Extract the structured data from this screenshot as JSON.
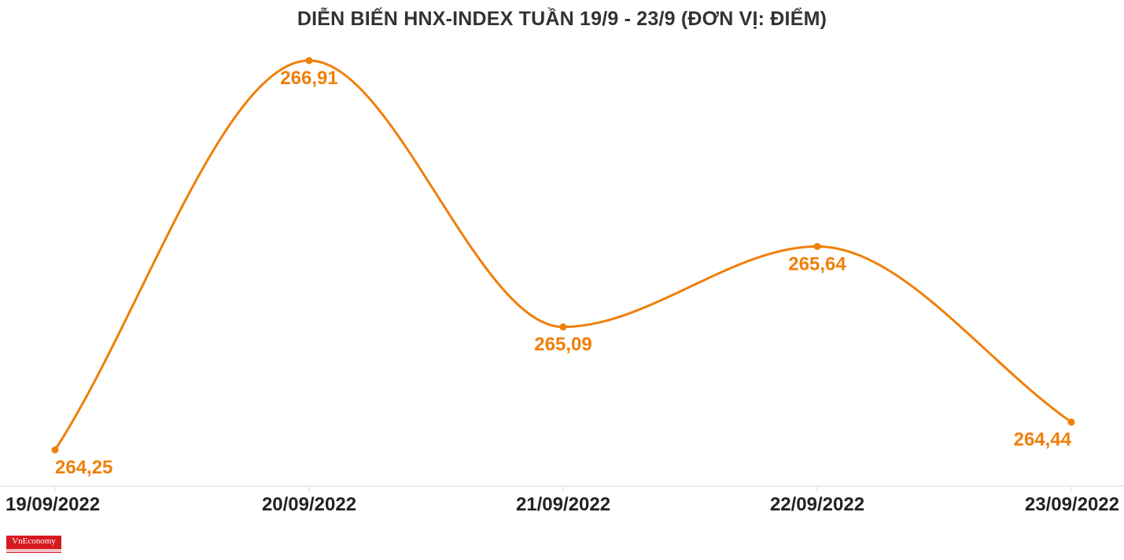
{
  "title": "DIỄN BIẾN HNX-INDEX TUẦN 19/9 - 23/9 (ĐƠN VỊ: ĐIỂM)",
  "logo_text": "VnEconomy",
  "colors": {
    "series": "#f07f09",
    "axis": "#e6e6e6",
    "title": "#333333",
    "tick_text": "#222222"
  },
  "chart_data": {
    "type": "line",
    "title": "DIỄN BIẾN HNX-INDEX TUẦN 19/9 - 23/9 (ĐƠN VỊ: ĐIỂM)",
    "categories": [
      "19/09/2022",
      "20/09/2022",
      "21/09/2022",
      "22/09/2022",
      "23/09/2022"
    ],
    "series": [
      {
        "values": [
          264.25,
          266.91,
          265.09,
          265.64,
          264.44
        ],
        "labels": [
          "264,25",
          "266,91",
          "265,09",
          "265,64",
          "264,44"
        ]
      }
    ],
    "smooth": true,
    "xlabel": "",
    "ylabel": "",
    "grid": false,
    "legend": "none"
  }
}
